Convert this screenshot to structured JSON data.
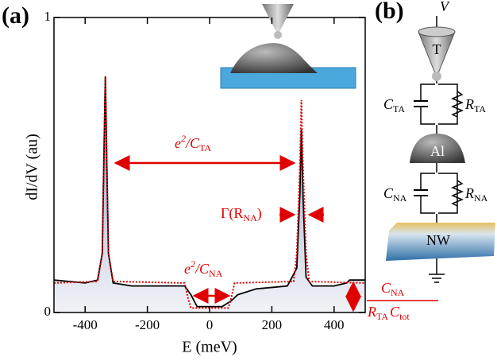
{
  "chart_data": {
    "type": "line",
    "panel_label": "(a)",
    "xlabel": "E (meV)",
    "ylabel": "dI/dV (au)",
    "xlim": [
      -500,
      500
    ],
    "xticks": [
      -400,
      -200,
      0,
      200,
      400
    ],
    "ylim": [
      0,
      1
    ],
    "yticks": [
      0,
      1
    ],
    "series": [
      {
        "color": "#000000",
        "fill": "#b8bfd6",
        "x": [
          -500,
          -450,
          -400,
          -360,
          -345,
          -340,
          -335,
          -330,
          -325,
          -310,
          -250,
          -150,
          -80,
          -60,
          -40,
          0,
          40,
          70,
          90,
          150,
          250,
          280,
          290,
          295,
          300,
          310,
          330,
          400,
          440,
          450,
          500
        ],
        "values": [
          0.11,
          0.105,
          0.1,
          0.11,
          0.2,
          0.5,
          0.8,
          0.5,
          0.2,
          0.1,
          0.09,
          0.09,
          0.09,
          0.06,
          0.02,
          0.02,
          0.02,
          0.04,
          0.06,
          0.08,
          0.09,
          0.15,
          0.4,
          0.62,
          0.4,
          0.12,
          0.09,
          0.09,
          0.1,
          0.11,
          0.11
        ]
      },
      {
        "color": "#e00000",
        "dashed": true,
        "x": [
          -500,
          -360,
          -345,
          -340,
          -335,
          -330,
          -325,
          -310,
          -80,
          -70,
          -60,
          60,
          70,
          80,
          270,
          280,
          290,
          295,
          300,
          310,
          320,
          500
        ],
        "values": [
          0.1,
          0.105,
          0.2,
          0.5,
          0.8,
          0.5,
          0.2,
          0.105,
          0.1,
          0.05,
          0.015,
          0.015,
          0.05,
          0.1,
          0.105,
          0.2,
          0.5,
          0.72,
          0.5,
          0.2,
          0.105,
          0.1
        ]
      }
    ],
    "annotations": {
      "tip_charging": {
        "a": "e",
        "sup": "2",
        "b": "/C",
        "sub": "TA"
      },
      "gap": {
        "a": "e",
        "sup": "2",
        "b": "/C",
        "sub": "NA"
      },
      "width": {
        "a": "Γ(R",
        "sub": "NA",
        "b": ")"
      },
      "offset": {
        "num": "C",
        "num_sub": "NA",
        "den1": "R",
        "den1_sub": "TA",
        "den2": "C",
        "den2_sub": "tot"
      }
    }
  },
  "diagram": {
    "panel_label": "(b)",
    "voltage": "V",
    "tip": "T",
    "island": "Al",
    "wire": "NW",
    "c1": "C",
    "c1_sub": "TA",
    "r1": "R",
    "r1_sub": "TA",
    "c2": "C",
    "c2_sub": "NA",
    "r2": "R",
    "r2_sub": "NA"
  }
}
